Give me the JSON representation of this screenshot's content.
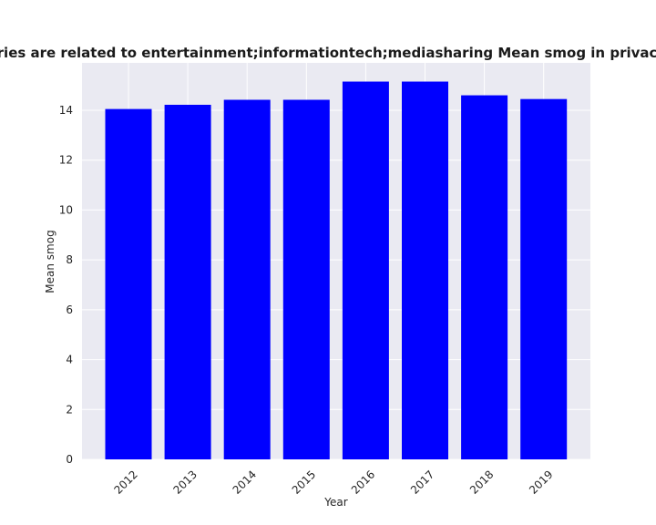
{
  "chart_data": {
    "type": "bar",
    "title": "Categories are related to entertainment;informationtech;mediasharing Mean smog in privacy policies",
    "xlabel": "Year",
    "ylabel": "Mean smog",
    "categories": [
      "2012",
      "2013",
      "2014",
      "2015",
      "2016",
      "2017",
      "2018",
      "2019"
    ],
    "values": [
      14.05,
      14.22,
      14.42,
      14.42,
      15.15,
      15.15,
      14.6,
      14.45
    ],
    "ylim": [
      0,
      15.9
    ],
    "yticks": [
      "0",
      "2",
      "4",
      "6",
      "8",
      "10",
      "12",
      "14"
    ],
    "grid": true,
    "bar_color": "#0000ff",
    "plot_background": "#eaeaf2",
    "grid_color": "#ffffff"
  }
}
